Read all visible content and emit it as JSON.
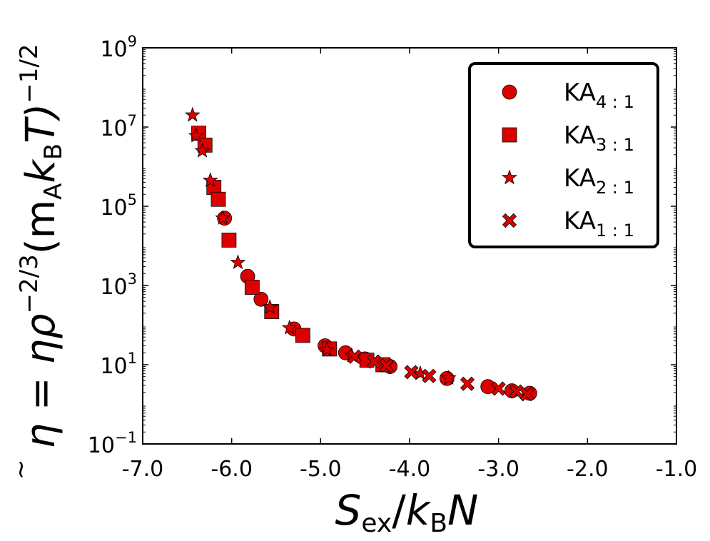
{
  "chart_data": {
    "type": "scatter",
    "title": "",
    "xlabel": {
      "main": "S",
      "main_sub": "ex",
      "sep": "/",
      "k": "k",
      "k_sub": "B",
      "n": "N"
    },
    "ylabel": {
      "lhs": "η",
      "eq": " = ηρ",
      "rho_exp": "−2/3",
      "paren_open": "(m",
      "m_sub": "A",
      "k": "k",
      "k_sub": "B",
      "t": "T)",
      "exp": "−1/2"
    },
    "xlim": [
      -7.0,
      -1.0
    ],
    "ylim_log10": [
      -1,
      9
    ],
    "yscale": "log",
    "grid": false,
    "legend_position": "top-right",
    "marker_color": "#dd0000",
    "x_ticks": [
      {
        "value": -7.0,
        "label": "-7.0"
      },
      {
        "value": -6.0,
        "label": "-6.0"
      },
      {
        "value": -5.0,
        "label": "-5.0"
      },
      {
        "value": -4.0,
        "label": "-4.0"
      },
      {
        "value": -3.0,
        "label": "-3.0"
      },
      {
        "value": -2.0,
        "label": "-2.0"
      },
      {
        "value": -1.0,
        "label": "-1.0"
      }
    ],
    "y_ticks": [
      {
        "value": 0.1,
        "base": "10",
        "exp": "−1"
      },
      {
        "value": 10,
        "base": "10",
        "exp": "1"
      },
      {
        "value": 1000,
        "base": "10",
        "exp": "3"
      },
      {
        "value": 100000,
        "base": "10",
        "exp": "5"
      },
      {
        "value": 10000000,
        "base": "10",
        "exp": "7"
      },
      {
        "value": 1000000000,
        "base": "10",
        "exp": "9"
      }
    ],
    "series": [
      {
        "name": "KA",
        "name_sub": "4 : 1",
        "marker": "circle",
        "points": [
          {
            "x": -6.08,
            "y": 50000
          },
          {
            "x": -5.82,
            "y": 1700
          },
          {
            "x": -5.67,
            "y": 450
          },
          {
            "x": -5.3,
            "y": 80
          },
          {
            "x": -4.95,
            "y": 30
          },
          {
            "x": -4.72,
            "y": 20
          },
          {
            "x": -4.5,
            "y": 14
          },
          {
            "x": -4.22,
            "y": 9
          },
          {
            "x": -3.58,
            "y": 4.5
          },
          {
            "x": -3.12,
            "y": 2.8
          },
          {
            "x": -2.85,
            "y": 2.2
          },
          {
            "x": -2.65,
            "y": 1.9
          }
        ]
      },
      {
        "name": "KA",
        "name_sub": "3 : 1",
        "marker": "square",
        "points": [
          {
            "x": -6.37,
            "y": 7000000
          },
          {
            "x": -6.3,
            "y": 3500000
          },
          {
            "x": -6.2,
            "y": 300000
          },
          {
            "x": -6.15,
            "y": 150000
          },
          {
            "x": -6.03,
            "y": 14000
          },
          {
            "x": -5.77,
            "y": 900
          },
          {
            "x": -5.55,
            "y": 220
          },
          {
            "x": -5.2,
            "y": 55
          },
          {
            "x": -4.9,
            "y": 25
          },
          {
            "x": -4.48,
            "y": 13
          },
          {
            "x": -4.3,
            "y": 10
          }
        ]
      },
      {
        "name": "KA",
        "name_sub": "2 : 1",
        "marker": "star",
        "points": [
          {
            "x": -6.44,
            "y": 20000000
          },
          {
            "x": -6.4,
            "y": 6000000
          },
          {
            "x": -6.33,
            "y": 2500000
          },
          {
            "x": -6.24,
            "y": 450000
          },
          {
            "x": -6.1,
            "y": 50000
          },
          {
            "x": -5.93,
            "y": 3800
          },
          {
            "x": -5.57,
            "y": 280
          },
          {
            "x": -5.35,
            "y": 85
          },
          {
            "x": -4.93,
            "y": 24
          },
          {
            "x": -4.65,
            "y": 17
          },
          {
            "x": -3.88,
            "y": 6
          },
          {
            "x": -3.56,
            "y": 4.6
          }
        ]
      },
      {
        "name": "KA",
        "name_sub": "1 : 1",
        "marker": "x",
        "points": [
          {
            "x": -4.62,
            "y": 16
          },
          {
            "x": -4.4,
            "y": 12
          },
          {
            "x": -4.26,
            "y": 9.5
          },
          {
            "x": -3.98,
            "y": 6.5
          },
          {
            "x": -3.78,
            "y": 5.2
          },
          {
            "x": -3.35,
            "y": 3.3
          },
          {
            "x": -3.0,
            "y": 2.5
          },
          {
            "x": -2.8,
            "y": 2.1
          },
          {
            "x": -2.68,
            "y": 1.8
          }
        ]
      }
    ]
  }
}
